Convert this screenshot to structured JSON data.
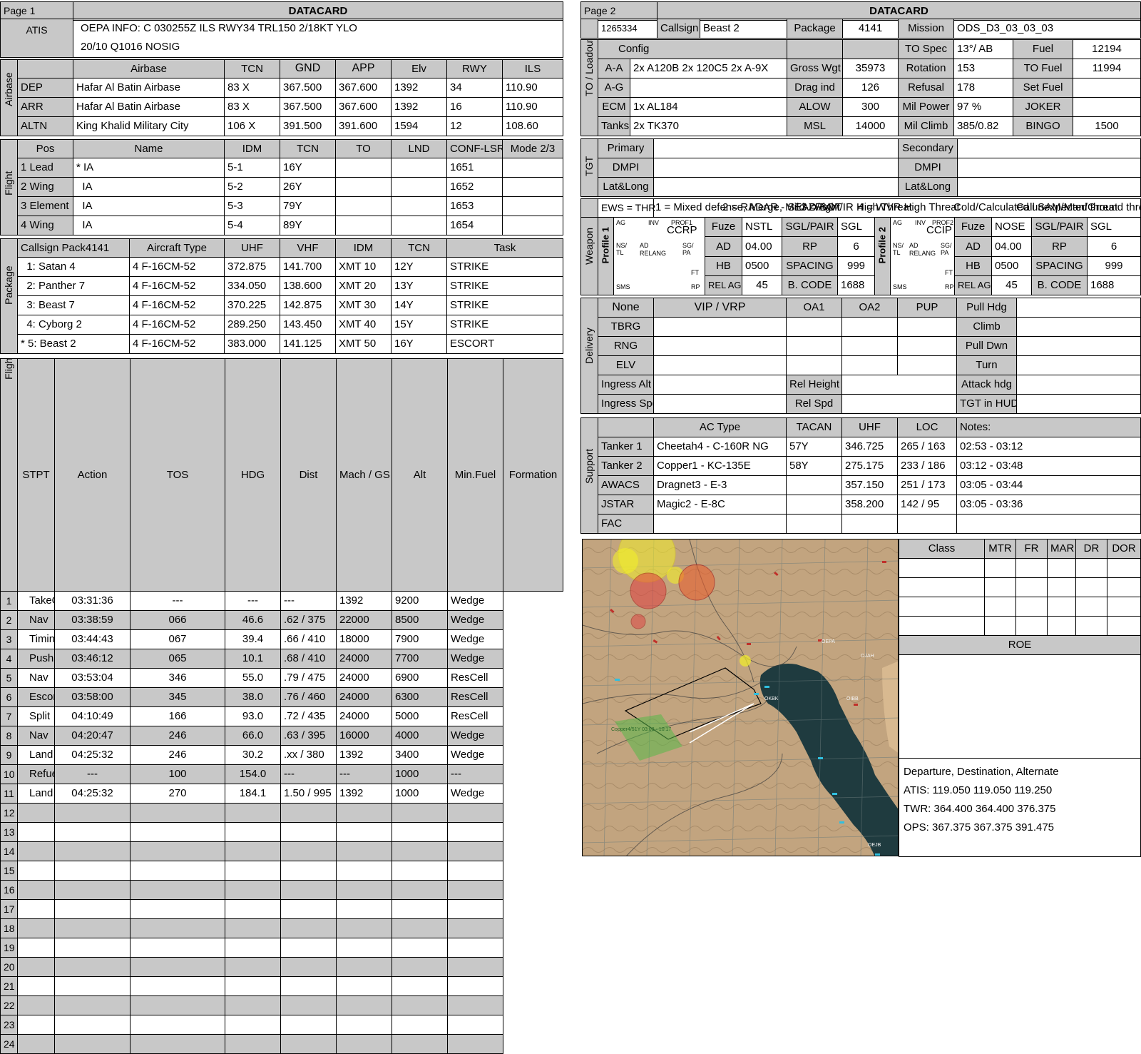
{
  "page1": {
    "page_label": "Page 1",
    "title": "DATACARD",
    "atis": {
      "label": "ATIS",
      "line1": "OEPA INFO: C 030255Z ILS RWY34 TRL150 2/18KT YLO",
      "line2": "20/10 Q1016  NOSIG"
    },
    "airbase": {
      "section_label": "Airbase",
      "headers": [
        "Airbase",
        "TCN",
        "GND",
        "APP",
        "Elv",
        "RWY",
        "ILS"
      ],
      "rows": [
        {
          "role": "DEP",
          "name": "Hafar Al Batin Airbase",
          "tcn": "83 X",
          "gnd": "367.500",
          "app": "367.600",
          "elv": "1392",
          "rwy": "34",
          "ils": "110.90"
        },
        {
          "role": "ARR",
          "name": "Hafar Al Batin Airbase",
          "tcn": "83 X",
          "gnd": "367.500",
          "app": "367.600",
          "elv": "1392",
          "rwy": "16",
          "ils": "110.90"
        },
        {
          "role": "ALTN",
          "name": "King Khalid Military City",
          "tcn": "106 X",
          "gnd": "391.500",
          "app": "391.600",
          "elv": "1594",
          "rwy": "12",
          "ils": "108.60"
        }
      ]
    },
    "flight": {
      "section_label": "Flight",
      "headers": [
        "Pos",
        "Name",
        "IDM",
        "TCN",
        "TO",
        "LND",
        "CONF-LSR",
        "Mode 2/3"
      ],
      "rows": [
        {
          "pos": "1 Lead",
          "name": "* IA",
          "idm": "5-1",
          "tcn": "16Y",
          "to": "",
          "lnd": "",
          "lsr": "1651",
          "mode": ""
        },
        {
          "pos": "2 Wing",
          "name": "  IA",
          "idm": "5-2",
          "tcn": "26Y",
          "to": "",
          "lnd": "",
          "lsr": "1652",
          "mode": ""
        },
        {
          "pos": "3 Element",
          "name": "  IA",
          "idm": "5-3",
          "tcn": "79Y",
          "to": "",
          "lnd": "",
          "lsr": "1653",
          "mode": ""
        },
        {
          "pos": "4 Wing",
          "name": "  IA",
          "idm": "5-4",
          "tcn": "89Y",
          "to": "",
          "lnd": "",
          "lsr": "1654",
          "mode": ""
        }
      ]
    },
    "package": {
      "section_label": "Package",
      "callsign_label": "Callsign Pack",
      "package_number": "4141",
      "headers": [
        "Aircraft Type",
        "UHF",
        "VHF",
        "IDM",
        "TCN",
        "Task"
      ],
      "rows": [
        {
          "callsign": "  1: Satan 4",
          "type": "4 F-16CM-52",
          "uhf": "372.875",
          "vhf": "141.700",
          "idm": "XMT 10",
          "tcn": "12Y",
          "task": "STRIKE"
        },
        {
          "callsign": "  2: Panther 7",
          "type": "4 F-16CM-52",
          "uhf": "334.050",
          "vhf": "138.600",
          "idm": "XMT 20",
          "tcn": "13Y",
          "task": "STRIKE"
        },
        {
          "callsign": "  3: Beast 7",
          "type": "4 F-16CM-52",
          "uhf": "370.225",
          "vhf": "142.875",
          "idm": "XMT 30",
          "tcn": "14Y",
          "task": "STRIKE"
        },
        {
          "callsign": "  4: Cyborg 2",
          "type": "4 F-16CM-52",
          "uhf": "289.250",
          "vhf": "143.450",
          "idm": "XMT 40",
          "tcn": "15Y",
          "task": "STRIKE"
        },
        {
          "callsign": "* 5: Beast 2",
          "type": "4 F-16CM-52",
          "uhf": "383.000",
          "vhf": "141.125",
          "idm": "XMT 50",
          "tcn": "16Y",
          "task": "ESCORT"
        }
      ]
    },
    "flightplan": {
      "section_label": "Flightplan",
      "headers": [
        "STPT",
        "Action",
        "TOS",
        "HDG",
        "Dist",
        "Mach / GS",
        "Alt",
        "Min.Fuel",
        "Formation"
      ],
      "rows": [
        {
          "stpt": "1",
          "action": "TakeOff",
          "tos": "03:31:36",
          "hdg": "---",
          "dist": "---",
          "mach": "---",
          "alt": "1392",
          "fuel": "9200",
          "form": "Wedge"
        },
        {
          "stpt": "2",
          "action": "Nav",
          "tos": "03:38:59",
          "hdg": "066",
          "dist": "46.6",
          "mach": ".62 / 375",
          "alt": "22000",
          "fuel": "8500",
          "form": "Wedge"
        },
        {
          "stpt": "3",
          "action": "Timing",
          "tos": "03:44:43",
          "hdg": "067",
          "dist": "39.4",
          "mach": ".66 / 410",
          "alt": "18000",
          "fuel": "7900",
          "form": "Wedge"
        },
        {
          "stpt": "4",
          "action": "Push",
          "tos": "03:46:12",
          "hdg": "065",
          "dist": "10.1",
          "mach": ".68 / 410",
          "alt": "24000",
          "fuel": "7700",
          "form": "Wedge"
        },
        {
          "stpt": "5",
          "action": "Nav",
          "tos": "03:53:04",
          "hdg": "346",
          "dist": "55.0",
          "mach": ".79 / 475",
          "alt": "24000",
          "fuel": "6900",
          "form": "ResCell"
        },
        {
          "stpt": "6",
          "action": "Escort",
          "tos": "03:58:00",
          "hdg": "345",
          "dist": "38.0",
          "mach": ".76 / 460",
          "alt": "24000",
          "fuel": "6300",
          "form": "ResCell"
        },
        {
          "stpt": "7",
          "action": "Split",
          "tos": "04:10:49",
          "hdg": "166",
          "dist": "93.0",
          "mach": ".72 / 435",
          "alt": "24000",
          "fuel": "5000",
          "form": "ResCell"
        },
        {
          "stpt": "8",
          "action": "Nav",
          "tos": "04:20:47",
          "hdg": "246",
          "dist": "66.0",
          "mach": ".63 / 395",
          "alt": "16000",
          "fuel": "4000",
          "form": "Wedge"
        },
        {
          "stpt": "9",
          "action": "Land",
          "tos": "04:25:32",
          "hdg": "246",
          "dist": "30.2",
          "mach": ".xx / 380",
          "alt": "1392",
          "fuel": "3400",
          "form": "Wedge"
        },
        {
          "stpt": "10",
          "action": "Refuel",
          "tos": "---",
          "hdg": "100",
          "dist": "154.0",
          "mach": "---",
          "alt": "---",
          "fuel": "1000",
          "form": "---"
        },
        {
          "stpt": "11",
          "action": "Land",
          "tos": "04:25:32",
          "hdg": "270",
          "dist": "184.1",
          "mach": "1.50 / 995",
          "alt": "1392",
          "fuel": "1000",
          "form": "Wedge"
        },
        {
          "stpt": "12",
          "action": "",
          "tos": "",
          "hdg": "",
          "dist": "",
          "mach": "",
          "alt": "",
          "fuel": "",
          "form": ""
        },
        {
          "stpt": "13",
          "action": "",
          "tos": "",
          "hdg": "",
          "dist": "",
          "mach": "",
          "alt": "",
          "fuel": "",
          "form": ""
        },
        {
          "stpt": "14",
          "action": "",
          "tos": "",
          "hdg": "",
          "dist": "",
          "mach": "",
          "alt": "",
          "fuel": "",
          "form": ""
        },
        {
          "stpt": "15",
          "action": "",
          "tos": "",
          "hdg": "",
          "dist": "",
          "mach": "",
          "alt": "",
          "fuel": "",
          "form": ""
        },
        {
          "stpt": "16",
          "action": "",
          "tos": "",
          "hdg": "",
          "dist": "",
          "mach": "",
          "alt": "",
          "fuel": "",
          "form": ""
        },
        {
          "stpt": "17",
          "action": "",
          "tos": "",
          "hdg": "",
          "dist": "",
          "mach": "",
          "alt": "",
          "fuel": "",
          "form": ""
        },
        {
          "stpt": "18",
          "action": "",
          "tos": "",
          "hdg": "",
          "dist": "",
          "mach": "",
          "alt": "",
          "fuel": "",
          "form": ""
        },
        {
          "stpt": "19",
          "action": "",
          "tos": "",
          "hdg": "",
          "dist": "",
          "mach": "",
          "alt": "",
          "fuel": "",
          "form": ""
        },
        {
          "stpt": "20",
          "action": "",
          "tos": "",
          "hdg": "",
          "dist": "",
          "mach": "",
          "alt": "",
          "fuel": "",
          "form": ""
        },
        {
          "stpt": "21",
          "action": "",
          "tos": "",
          "hdg": "",
          "dist": "",
          "mach": "",
          "alt": "",
          "fuel": "",
          "form": ""
        },
        {
          "stpt": "22",
          "action": "",
          "tos": "",
          "hdg": "",
          "dist": "",
          "mach": "",
          "alt": "",
          "fuel": "",
          "form": ""
        },
        {
          "stpt": "23",
          "action": "",
          "tos": "",
          "hdg": "",
          "dist": "",
          "mach": "",
          "alt": "",
          "fuel": "",
          "form": ""
        },
        {
          "stpt": "24",
          "action": "",
          "tos": "",
          "hdg": "",
          "dist": "",
          "mach": "",
          "alt": "",
          "fuel": "",
          "form": ""
        }
      ]
    }
  },
  "page2": {
    "page_label": "Page 2",
    "title": "DATACARD",
    "header": {
      "id": "1265334",
      "callsign_label": "Callsign",
      "callsign": "Beast 2",
      "package_label": "Package",
      "package": "4141",
      "mission_label": "Mission",
      "mission": "ODS_D3_03_03_03"
    },
    "loadout": {
      "section_label": "TO / Loadout",
      "config_label": "Config",
      "aa_label": "A-A",
      "aa": "2x A120B 2x 120C5 2x A-9X",
      "ag_label": "A-G",
      "ag": "",
      "ecm_label": "ECM",
      "ecm": "1x AL184",
      "tanks_label": "Tanks",
      "tanks": "2x TK370",
      "gross_label": "Gross Wgt",
      "gross": "35973",
      "drag_label": "Drag ind",
      "drag": "126",
      "alow_label": "ALOW",
      "alow": "300",
      "msl_label": "MSL",
      "msl": "14000",
      "tospec_label": "TO Spec",
      "tospec": "13°/ AB",
      "rotation_label": "Rotation",
      "rotation": "153",
      "refusal_label": "Refusal",
      "refusal": "178",
      "milpower_label": "Mil Power",
      "milpower": "97 %",
      "milclimb_label": "Mil Climb",
      "milclimb": "385/0.82",
      "fuel_label": "Fuel",
      "fuel": "12194",
      "tofuel_label": "TO Fuel",
      "tofuel": "11994",
      "setfuel_label": "Set Fuel",
      "setfuel": "",
      "joker_label": "JOKER",
      "joker": "",
      "bingo_label": "BINGO",
      "bingo": "1500"
    },
    "tgt": {
      "section_label": "TGT",
      "primary_label": "Primary",
      "secondary_label": "Secondary",
      "dmpi_label": "DMPI",
      "latlong_label": "Lat&Long"
    },
    "ews": {
      "text": "EWS = THR",
      "overlap": [
        "1 = Mixed defense, Merge, Mild-ZRight",
        "2 = RADAR - SEAD/BOT",
        "3 = AAA/IR High Threat",
        "4 = WVR High Threat",
        "Cold/Calculated unexpected threat",
        "Call SAM/Man/Ground threat /"
      ]
    },
    "weapon": {
      "section_label": "Weapon",
      "profiles": [
        {
          "label": "Profile 1",
          "ag": "AG",
          "inv": "INV",
          "prof": "PROF1",
          "mode": "CCRP",
          "nstl": "NS/\nTL",
          "ad": "AD",
          "relang": "RELANG",
          "sgpa": "SG/\nPA",
          "ft": "FT",
          "sms": "SMS",
          "rp": "RP",
          "fuze_label": "Fuze",
          "fuze": "NSTL",
          "sgl_label": "SGL/PAIR",
          "sgl": "SGL",
          "ad_label": "AD",
          "ad_val": "04.00",
          "rp_label": "RP",
          "rp_val": "6",
          "hb_label": "HB",
          "hb": "0500",
          "spacing_label": "SPACING",
          "spacing": "999",
          "relagl_label": "REL AGL",
          "relagl": "45",
          "bcode_label": "B. CODE",
          "bcode": "1688"
        },
        {
          "label": "Profile 2",
          "ag": "AG",
          "inv": "INV",
          "prof": "PROF2",
          "mode": "CCIP",
          "nstl": "NS/\nTL",
          "ad": "AD",
          "relang": "RELANG",
          "sgpa": "SG/\nPA",
          "ft": "FT",
          "sms": "SMS",
          "rp": "RP",
          "fuze_label": "Fuze",
          "fuze": "NOSE",
          "sgl_label": "SGL/PAIR",
          "sgl": "SGL",
          "ad_label": "AD",
          "ad_val": "04.00",
          "rp_label": "RP",
          "rp_val": "6",
          "hb_label": "HB",
          "hb": "0500",
          "spacing_label": "SPACING",
          "spacing": "999",
          "relagl_label": "REL AGL",
          "relagl": "45",
          "bcode_label": "B. CODE",
          "bcode": "1688"
        }
      ]
    },
    "delivery": {
      "section_label": "Delivery",
      "none": "None",
      "vip": "VIP / VRP",
      "oa1": "OA1",
      "oa2": "OA2",
      "pup": "PUP",
      "rows": [
        "TBRG",
        "RNG",
        "ELV"
      ],
      "right_rows": [
        "Pull Hdg",
        "Climb",
        "Pull Dwn",
        "Turn",
        "Attack hdg",
        "TGT in HUD"
      ],
      "ingress_alt": "Ingress Alt",
      "ingress_spd": "Ingress Spd",
      "rel_height": "Rel Height",
      "rel_spd": "Rel Spd"
    },
    "support": {
      "section_label": "Support",
      "headers": [
        "AC Type",
        "TACAN",
        "UHF",
        "LOC",
        "Notes:"
      ],
      "rows": [
        {
          "role": "Tanker 1",
          "type": "Cheetah4 - C-160R NG",
          "tacan": "57Y",
          "uhf": "346.725",
          "loc": "265 / 163",
          "notes": "02:53 - 03:12"
        },
        {
          "role": "Tanker 2",
          "type": "Copper1 - KC-135E",
          "tacan": "58Y",
          "uhf": "275.175",
          "loc": "233 / 186",
          "notes": "03:12 - 03:48"
        },
        {
          "role": "AWACS",
          "type": "Dragnet3 - E-3",
          "tacan": "",
          "uhf": "357.150",
          "loc": "251 / 173",
          "notes": "03:05 - 03:44"
        },
        {
          "role": "JSTAR",
          "type": "Magic2 - E-8C",
          "tacan": "",
          "uhf": "358.200",
          "loc": "142 / 95",
          "notes": "03:05 - 03:36"
        },
        {
          "role": "FAC",
          "type": "",
          "tacan": "",
          "uhf": "",
          "loc": "",
          "notes": ""
        }
      ]
    },
    "class_table": {
      "headers": [
        "Class",
        "MTR",
        "FR",
        "MAR",
        "DR",
        "DOR"
      ]
    },
    "roe": {
      "title": "ROE"
    },
    "freqs": {
      "title": "Departure, Destination, Alternate",
      "atis": "ATIS: 119.050  119.050  119.250",
      "twr": "TWR: 364.400  364.400  376.375",
      "ops": "OPS: 367.375  367.375  391.475"
    },
    "map": {
      "labels": [
        "OKBK",
        "OJAH",
        "OEPA",
        "OIBB",
        "OEJB",
        "Copper4/51Y 03:08 - 10:17"
      ]
    }
  },
  "colors": {
    "header_grey": "#c8c8c8",
    "map_sea": "#1f3b3f",
    "map_land": "#b79a76",
    "threat_yellow": "#f2ee2a",
    "threat_red": "#e04040"
  }
}
